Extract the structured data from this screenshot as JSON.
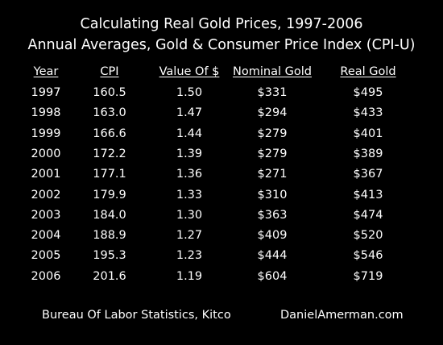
{
  "chart_data": {
    "type": "table",
    "title": "Calculating Real Gold Prices, 1997-2006",
    "subtitle": "Annual Averages, Gold & Consumer Price Index (CPI-U)",
    "columns": [
      "Year",
      "CPI",
      "Value Of $",
      "Nominal Gold",
      "Real Gold"
    ],
    "rows": [
      [
        "1997",
        "160.5",
        "1.50",
        "$331",
        "$495"
      ],
      [
        "1998",
        "163.0",
        "1.47",
        "$294",
        "$433"
      ],
      [
        "1999",
        "166.6",
        "1.44",
        "$279",
        "$401"
      ],
      [
        "2000",
        "172.2",
        "1.39",
        "$279",
        "$389"
      ],
      [
        "2001",
        "177.1",
        "1.36",
        "$271",
        "$367"
      ],
      [
        "2002",
        "179.9",
        "1.33",
        "$310",
        "$413"
      ],
      [
        "2003",
        "184.0",
        "1.30",
        "$363",
        "$474"
      ],
      [
        "2004",
        "188.9",
        "1.27",
        "$409",
        "$520"
      ],
      [
        "2005",
        "195.3",
        "1.23",
        "$444",
        "$546"
      ],
      [
        "2006",
        "201.6",
        "1.19",
        "$604",
        "$719"
      ]
    ],
    "footer_left": "Bureau Of Labor Statistics, Kitco",
    "footer_right": "DanielAmerman.com"
  },
  "colors": {
    "background": "#000000",
    "text": "#ffffff"
  }
}
